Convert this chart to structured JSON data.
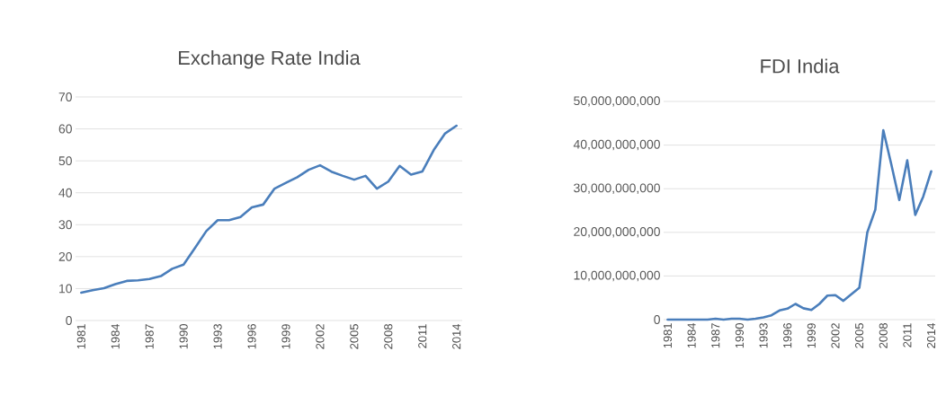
{
  "chart_data": [
    {
      "type": "line",
      "title": "Exchange Rate India",
      "categories": [
        "1981",
        null,
        null,
        "1984",
        null,
        null,
        "1987",
        null,
        null,
        "1990",
        null,
        null,
        "1993",
        null,
        null,
        "1996",
        null,
        null,
        "1999",
        null,
        null,
        "2002",
        null,
        null,
        "2005",
        null,
        null,
        "2008",
        null,
        null,
        "2011",
        null,
        null,
        "2014"
      ],
      "series": [
        {
          "color": "#4a7ebb",
          "values": [
            8.7,
            9.5,
            10.1,
            11.4,
            12.4,
            12.6,
            13.0,
            13.9,
            16.2,
            17.5,
            22.7,
            28.0,
            31.4,
            31.4,
            32.4,
            35.4,
            36.3,
            41.3,
            43.1,
            44.9,
            47.2,
            48.6,
            46.6,
            45.3,
            44.1,
            45.3,
            41.3,
            43.5,
            48.4,
            45.7,
            46.7,
            53.4,
            58.6,
            61.0
          ]
        }
      ],
      "ylim": [
        0,
        70
      ],
      "yticks": [
        0,
        10,
        20,
        30,
        40,
        50,
        60,
        70
      ],
      "grid": "y",
      "marker": "none",
      "line_style": "solid"
    },
    {
      "type": "line",
      "title": "FDI India",
      "categories": [
        "1981",
        null,
        null,
        "1984",
        null,
        null,
        "1987",
        null,
        null,
        "1990",
        null,
        null,
        "1993",
        null,
        null,
        "1996",
        null,
        null,
        "1999",
        null,
        null,
        "2002",
        null,
        null,
        "2005",
        null,
        null,
        "2008",
        null,
        null,
        "2011",
        null,
        null,
        "2014"
      ],
      "series": [
        {
          "color": "#4a7ebb",
          "values": [
            0,
            0,
            0,
            0,
            0,
            0,
            200000000,
            0,
            200000000,
            200000000,
            0,
            200000000,
            500000000,
            1000000000,
            2100000000,
            2500000000,
            3600000000,
            2600000000,
            2200000000,
            3600000000,
            5500000000,
            5600000000,
            4300000000,
            5800000000,
            7300000000,
            20000000000,
            25200000000,
            43400000000,
            35600000000,
            27400000000,
            36500000000,
            24000000000,
            28200000000,
            34000000000
          ]
        }
      ],
      "ylim": [
        0,
        50000000000
      ],
      "yticks": [
        {
          "value": 0,
          "label": "0"
        },
        {
          "value": 10000000000,
          "label": "10,000,000,000"
        },
        {
          "value": 20000000000,
          "label": "20,000,000,000"
        },
        {
          "value": 30000000000,
          "label": "30,000,000,000"
        },
        {
          "value": 40000000000,
          "label": "40,000,000,000"
        },
        {
          "value": 50000000000,
          "label": "50,000,000,000"
        }
      ],
      "grid": "y",
      "marker": "none",
      "line_style": "solid"
    }
  ]
}
